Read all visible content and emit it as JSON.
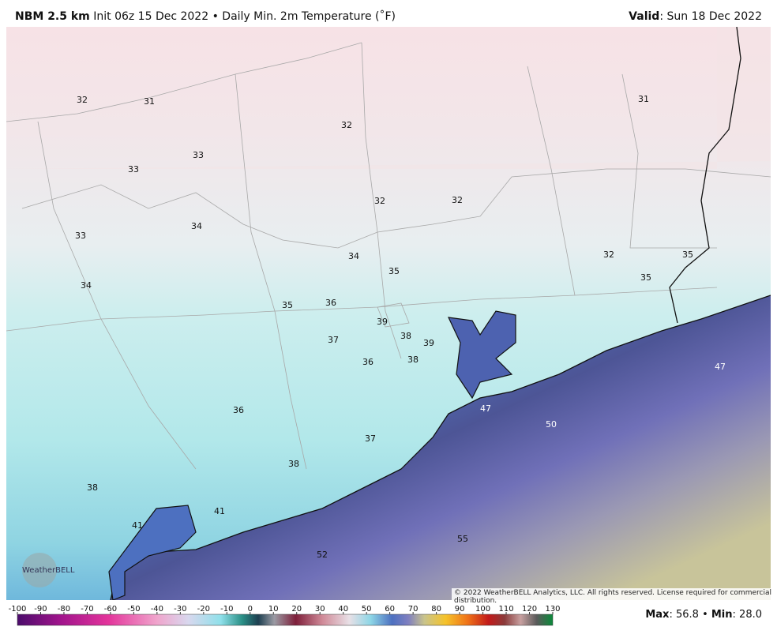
{
  "header": {
    "model": "NBM 2.5 km",
    "init": "Init 06z 15 Dec 2022",
    "separator": "•",
    "title": "Daily Min. 2m Temperature (˚F)",
    "valid_label": "Valid",
    "valid_date": ": Sun 18 Dec 2022"
  },
  "map": {
    "labels": [
      32,
      31,
      32,
      31,
      33,
      33,
      32,
      32,
      34,
      33,
      34,
      35,
      32,
      35,
      35,
      34,
      35,
      36,
      39,
      38,
      39,
      37,
      38,
      36,
      47,
      47,
      50,
      36,
      37,
      38,
      38,
      41,
      41,
      55,
      52
    ]
  },
  "copyright": "© 2022 WeatherBELL Analytics, LLC. All rights reserved. License required for commercial distribution.",
  "logo": "WeatherBELL",
  "colorbar": {
    "ticks": [
      -100,
      -90,
      -80,
      -70,
      -60,
      -50,
      -40,
      -30,
      -20,
      -10,
      0,
      10,
      20,
      30,
      40,
      50,
      60,
      70,
      80,
      90,
      100,
      110,
      120,
      130
    ]
  },
  "footer": {
    "max_label": "Max",
    "max_value": ": 56.8",
    "separator": "•",
    "min_label": "Min",
    "min_value": ": 28.0"
  }
}
